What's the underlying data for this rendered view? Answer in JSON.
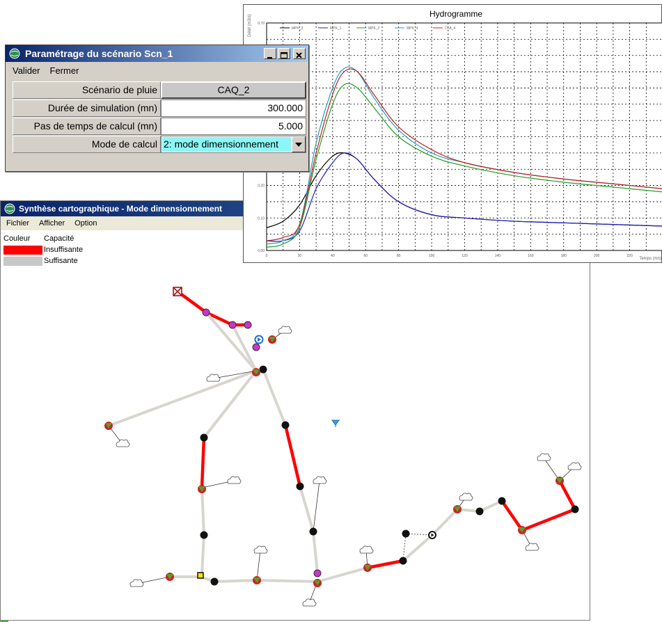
{
  "dialog": {
    "title": "Paramétrage du scénario Scn_1",
    "menu": [
      "Valider",
      "Fermer"
    ],
    "rows": [
      {
        "label": "Scénario de pluie",
        "value": "CAQ_2"
      },
      {
        "label": "Durée de simulation (mn)",
        "value": "300.000"
      },
      {
        "label": "Pas de temps de calcul (mn)",
        "value": "5.000"
      },
      {
        "label": "Mode de calcul",
        "value": "2: mode dimensionnement"
      }
    ]
  },
  "map": {
    "title": "Synthèse cartographique - Mode dimensionnement",
    "menu": [
      "Fichier",
      "Afficher",
      "Option"
    ],
    "legend": {
      "col1": "Couleur",
      "col2": "Capacité",
      "items": [
        {
          "label": "Insuffisante",
          "color": "#ff0000"
        },
        {
          "label": "Suffisante",
          "color": "#c8c8c8"
        }
      ]
    }
  },
  "chart": {
    "title": "Hydrogramme",
    "window_title_color": "#0a246a"
  },
  "chart_data": {
    "type": "line",
    "title": "Hydrogramme",
    "xlabel": "Temps (mn)",
    "ylabel": "Débit (m3/s)",
    "xlim": [
      0,
      240
    ],
    "ylim": [
      0,
      0.7
    ],
    "xticks": [
      0,
      20,
      40,
      60,
      80,
      100,
      120,
      140,
      160,
      180,
      200,
      220
    ],
    "yticks": [
      0.0,
      0.1,
      0.2,
      0.7
    ],
    "ytick_labels": [
      "0.00",
      "0.10",
      "0.20",
      "0.70"
    ],
    "grid": true,
    "legend_position": "top",
    "series": [
      {
        "name": "MPK_3",
        "color": "#000000",
        "x": [
          0,
          10,
          20,
          30,
          40,
          47,
          55,
          65,
          80,
          100,
          120,
          150,
          180,
          210,
          240
        ],
        "y": [
          0.07,
          0.09,
          0.14,
          0.23,
          0.29,
          0.3,
          0.28,
          0.22,
          0.15,
          0.11,
          0.1,
          0.09,
          0.085,
          0.08,
          0.075
        ]
      },
      {
        "name": "MPK_1",
        "color": "#2020c0",
        "x": [
          0,
          10,
          20,
          30,
          40,
          47,
          55,
          65,
          80,
          100,
          120,
          150,
          180,
          210,
          240
        ],
        "y": [
          0.03,
          0.03,
          0.06,
          0.19,
          0.27,
          0.3,
          0.28,
          0.22,
          0.15,
          0.11,
          0.1,
          0.09,
          0.085,
          0.08,
          0.075
        ]
      },
      {
        "name": "MPK_2",
        "color": "#20a020",
        "x": [
          0,
          10,
          20,
          30,
          40,
          47,
          55,
          65,
          80,
          100,
          120,
          150,
          180,
          210,
          240
        ],
        "y": [
          0.01,
          0.02,
          0.07,
          0.28,
          0.45,
          0.51,
          0.5,
          0.44,
          0.35,
          0.29,
          0.26,
          0.23,
          0.21,
          0.195,
          0.18
        ]
      },
      {
        "name": "MPK_4",
        "color": "#20a0c0",
        "x": [
          0,
          10,
          20,
          30,
          40,
          47,
          55,
          65,
          80,
          100,
          120,
          150,
          180,
          210,
          240
        ],
        "y": [
          0.02,
          0.03,
          0.08,
          0.33,
          0.5,
          0.56,
          0.55,
          0.47,
          0.37,
          0.3,
          0.27,
          0.24,
          0.22,
          0.205,
          0.19
        ]
      },
      {
        "name": "CLA_4",
        "color": "#c02020",
        "x": [
          0,
          10,
          20,
          30,
          40,
          47,
          55,
          65,
          80,
          100,
          120,
          150,
          180,
          210,
          240
        ],
        "y": [
          0.03,
          0.04,
          0.08,
          0.3,
          0.48,
          0.55,
          0.55,
          0.48,
          0.38,
          0.31,
          0.27,
          0.24,
          0.22,
          0.205,
          0.19
        ]
      }
    ]
  }
}
